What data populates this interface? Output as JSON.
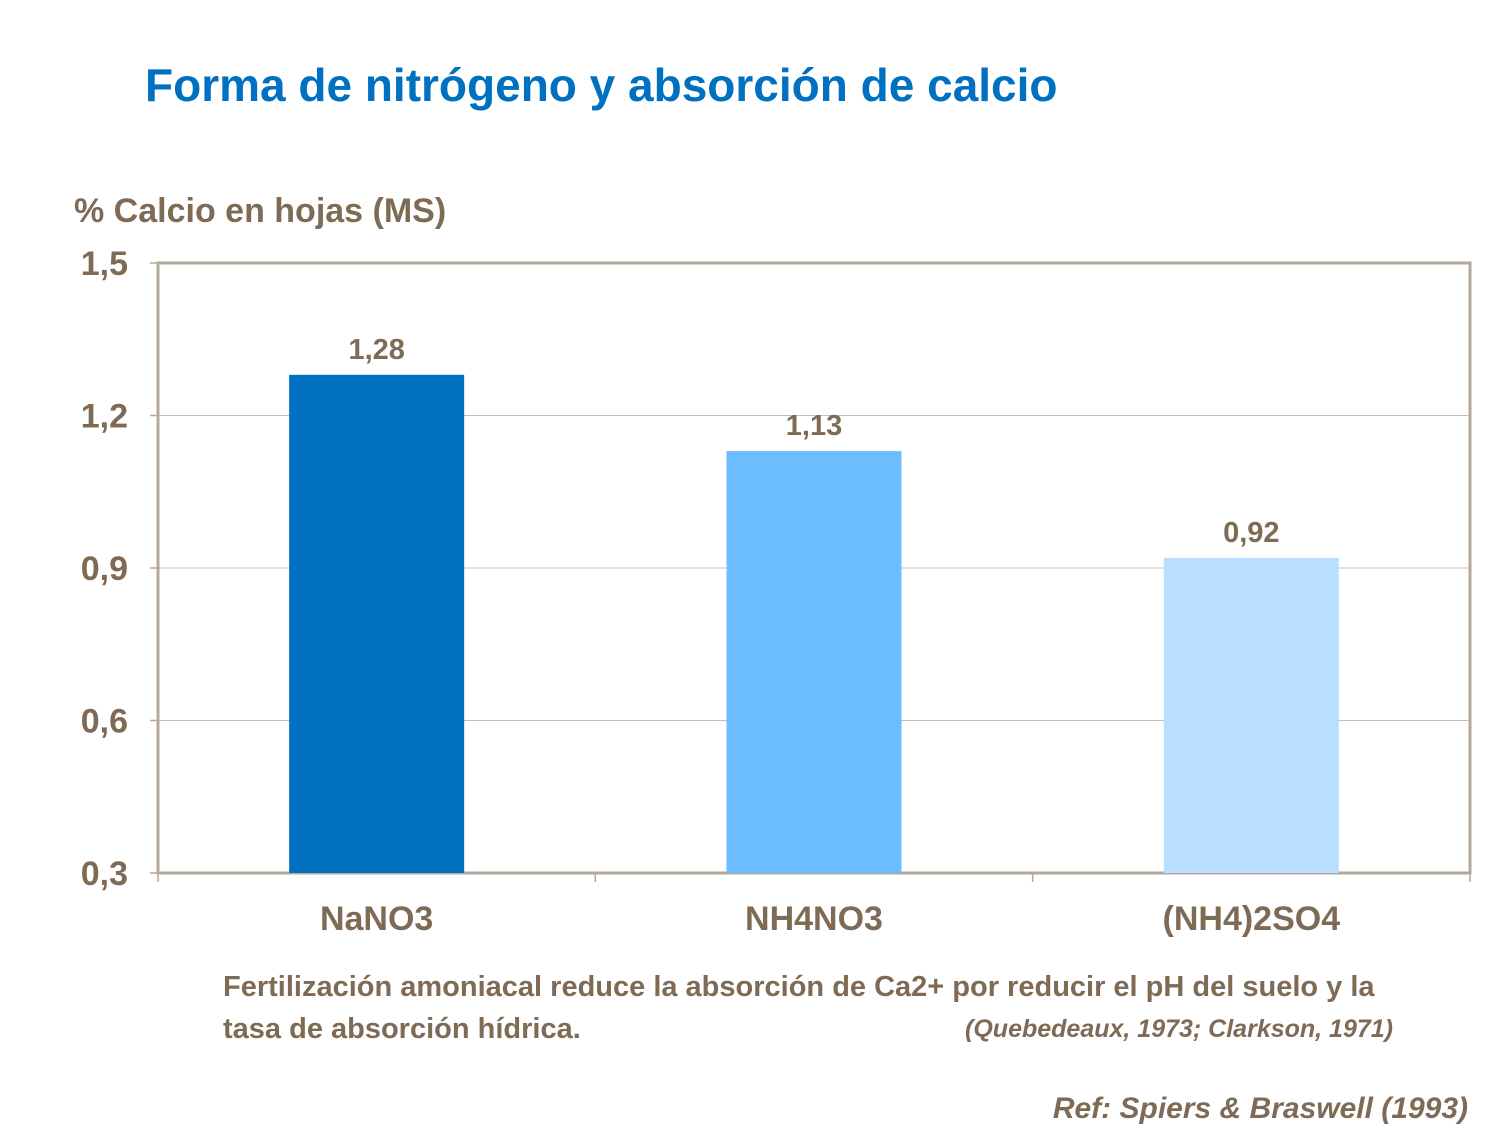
{
  "title": "Forma de nitrógeno y absorción de calcio",
  "chart_data": {
    "type": "bar",
    "title": "Forma de nitrógeno y absorción de calcio",
    "ylabel": "% Calcio en hojas (MS)",
    "xlabel": "",
    "categories": [
      "NaNO3",
      "NH4NO3",
      "(NH4)2SO4"
    ],
    "values": [
      1.28,
      1.13,
      0.92
    ],
    "data_labels": [
      "1,28",
      "1,13",
      "0,92"
    ],
    "bar_colors": [
      "#0070C0",
      "#6BBDFF",
      "#B8DFFF"
    ],
    "ylim": [
      0.3,
      1.5
    ],
    "yticks": [
      0.3,
      0.6,
      0.9,
      1.2,
      1.5
    ],
    "ytick_labels": [
      "0,3",
      "0,6",
      "0,9",
      "1,2",
      "1,5"
    ],
    "grid": true,
    "legend": "none"
  },
  "note": {
    "text": "Fertilización amoniacal reduce la absorción de Ca2+ por reducir el pH del suelo y la tasa de absorción hídrica.",
    "citation": "(Quebedeaux, 1973; Clarkson, 1971)"
  },
  "reference": "Ref: Spiers & Braswell (1993)",
  "colors": {
    "title": "#0070C0",
    "text": "#7F6B55",
    "axis": "#B3A89B",
    "grid": "#C8BFB4"
  }
}
